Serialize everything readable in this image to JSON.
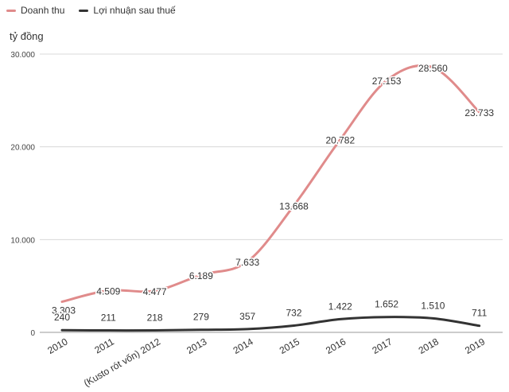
{
  "legend": [
    {
      "name": "Doanh thu",
      "color": "#e08b8b"
    },
    {
      "name": "Lợi nhuận sau thuế",
      "color": "#333333"
    }
  ],
  "unit_label": "tỷ đồng",
  "chart_data": {
    "type": "line",
    "title": "",
    "ylabel": "tỷ đồng",
    "xlabel": "",
    "categories": [
      "2010",
      "2011",
      "(Kusto rót vốn) 2012",
      "2013",
      "2014",
      "2015",
      "2016",
      "2017",
      "2018",
      "2019"
    ],
    "yticks": [
      {
        "value": 0,
        "label": "0"
      },
      {
        "value": 10000,
        "label": "10.000"
      },
      {
        "value": 20000,
        "label": "20.000"
      },
      {
        "value": 30000,
        "label": "30.000"
      }
    ],
    "ylim": [
      0,
      30000
    ],
    "series": [
      {
        "name": "Doanh thu",
        "color": "#e08b8b",
        "values": [
          3303,
          4509,
          4477,
          6189,
          7633,
          13668,
          20782,
          27153,
          28560,
          23733
        ],
        "labels": [
          "3.303",
          "4.509",
          "4.477",
          "6.189",
          "7.633",
          "13.668",
          "20.782",
          "27.153",
          "28.560",
          "23.733"
        ]
      },
      {
        "name": "Lợi nhuận sau thuế",
        "color": "#333333",
        "values": [
          240,
          211,
          218,
          279,
          357,
          732,
          1422,
          1652,
          1510,
          711
        ],
        "labels": [
          "240",
          "211",
          "218",
          "279",
          "357",
          "732",
          "1.422",
          "1.652",
          "1.510",
          "711"
        ]
      }
    ]
  }
}
